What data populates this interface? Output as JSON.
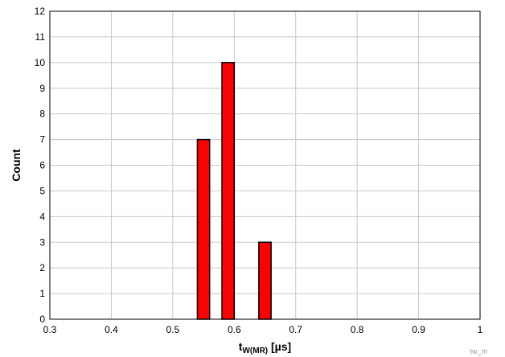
{
  "chart_data": {
    "type": "bar",
    "bars": [
      {
        "x": 0.55,
        "value": 7
      },
      {
        "x": 0.59,
        "value": 10
      },
      {
        "x": 0.65,
        "value": 3
      }
    ],
    "bar_width": 0.02,
    "xlim": [
      0.3,
      1.0
    ],
    "ylim": [
      0,
      12
    ],
    "x_ticks": [
      0.3,
      0.4,
      0.5,
      0.6,
      0.7,
      0.8,
      0.9,
      1.0
    ],
    "x_tick_labels": [
      "0.3",
      "0.4",
      "0.5",
      "0.6",
      "0.7",
      "0.8",
      "0.9",
      "1"
    ],
    "y_ticks": [
      0,
      1,
      2,
      3,
      4,
      5,
      6,
      7,
      8,
      9,
      10,
      11,
      12
    ],
    "y_tick_labels": [
      "0",
      "1",
      "2",
      "3",
      "4",
      "5",
      "6",
      "7",
      "8",
      "9",
      "10",
      "11",
      "12"
    ],
    "xlabel_main": "t",
    "xlabel_sub": "W(MR)",
    "xlabel_unit": " [µs]",
    "ylabel": "Count",
    "grid": true,
    "bar_color": "#ff0000",
    "bar_edge_color": "#000000",
    "watermark": "tw_m"
  }
}
